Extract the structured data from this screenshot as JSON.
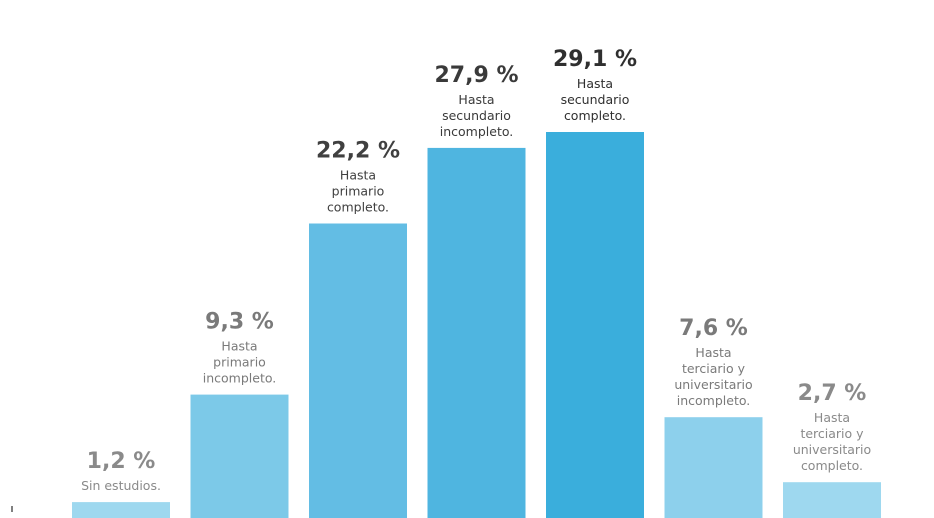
{
  "chart_data": {
    "type": "bar",
    "title": "",
    "xlabel": "",
    "ylabel": "",
    "ylim": [
      0,
      31
    ],
    "grid": false,
    "categories": [
      "Sin estudios.",
      "Hasta primario incompleto.",
      "Hasta primario completo.",
      "Hasta secundario incompleto.",
      "Hasta secundario completo.",
      "Hasta terciario y universitario incompleto.",
      "Hasta terciario y universitario completo."
    ],
    "values": [
      1.2,
      9.3,
      22.2,
      27.9,
      29.1,
      7.6,
      2.7
    ],
    "value_labels": [
      "1,2 %",
      "9,3 %",
      "22,2 %",
      "27,9 %",
      "29,1 %",
      "7,6 %",
      "2,7 %"
    ],
    "category_lines": [
      [
        "Sin estudios."
      ],
      [
        "Hasta",
        "primario",
        "incompleto."
      ],
      [
        "Hasta",
        "primario",
        "completo."
      ],
      [
        "Hasta",
        "secundario",
        "incompleto."
      ],
      [
        "Hasta",
        "secundario",
        "completo."
      ],
      [
        "Hasta",
        "terciario y",
        "universitario",
        "incompleto."
      ],
      [
        "Hasta",
        "terciario y",
        "universitario",
        "completo."
      ]
    ],
    "bar_colors": [
      "#9ed8ef",
      "#7cc9e8",
      "#63bde4",
      "#4fb5e0",
      "#3aaedc",
      "#8dd0ec",
      "#9ed8ef"
    ],
    "label_colors": [
      "#8a8a8a",
      "#7a7a7a",
      "#404040",
      "#3a3a3a",
      "#2f2f2f",
      "#7a7a7a",
      "#8a8a8a"
    ]
  }
}
